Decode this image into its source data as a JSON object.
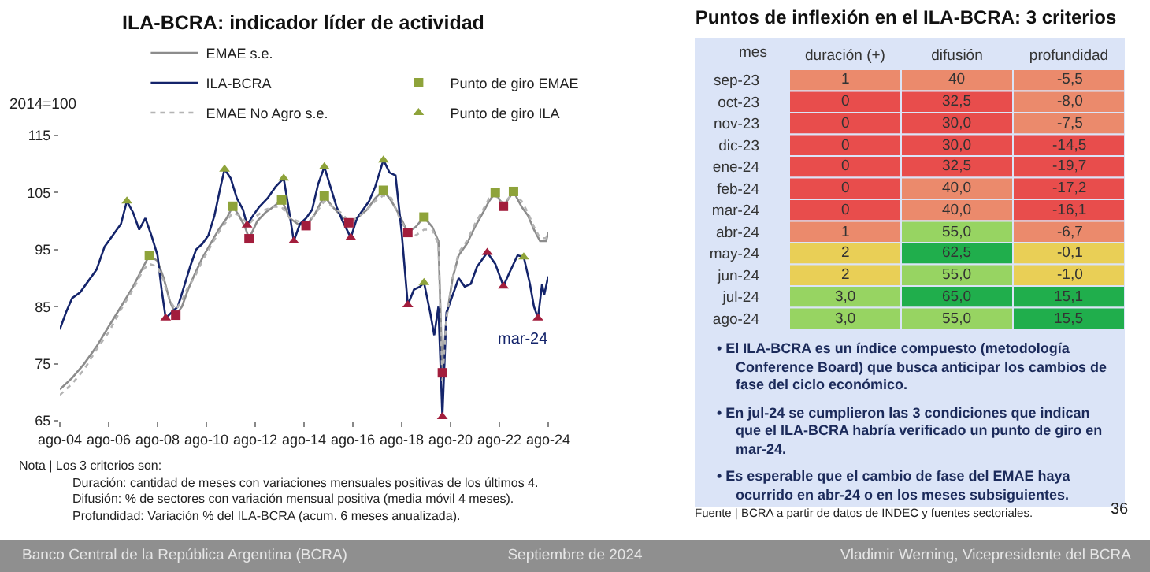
{
  "chart_data": [
    {
      "type": "line",
      "title": "ILA-BCRA: indicador líder de actividad",
      "ylabel": "2014=100",
      "xlim": [
        "2004-08",
        "2024-08"
      ],
      "xticks": [
        {
          "value": "2004-08",
          "label": "ago-04"
        },
        {
          "value": "2006-08",
          "label": "ago-06"
        },
        {
          "value": "2008-08",
          "label": "ago-08"
        },
        {
          "value": "2010-08",
          "label": "ago-10"
        },
        {
          "value": "2012-08",
          "label": "ago-12"
        },
        {
          "value": "2014-08",
          "label": "ago-14"
        },
        {
          "value": "2016-08",
          "label": "ago-16"
        },
        {
          "value": "2018-08",
          "label": "ago-18"
        },
        {
          "value": "2020-08",
          "label": "ago-20"
        },
        {
          "value": "2022-08",
          "label": "ago-22"
        },
        {
          "value": "2024-08",
          "label": "ago-24"
        }
      ],
      "ylim": [
        65,
        115
      ],
      "yticks": [
        65,
        75,
        85,
        95,
        105,
        115
      ],
      "grid": false,
      "legend": "top",
      "series": [
        {
          "name": "EMAE s.e.",
          "type": "line",
          "color": "#8c8c8c",
          "line_style": "solid",
          "marker": "none",
          "x": [
            "2004-08",
            "2005-02",
            "2005-08",
            "2006-02",
            "2006-08",
            "2007-02",
            "2007-08",
            "2008-01",
            "2008-04",
            "2008-08",
            "2008-11",
            "2009-02",
            "2009-05",
            "2009-08",
            "2009-11",
            "2010-02",
            "2010-06",
            "2010-10",
            "2011-02",
            "2011-06",
            "2011-09",
            "2011-12",
            "2012-03",
            "2012-05",
            "2012-09",
            "2013-01",
            "2013-05",
            "2013-09",
            "2014-01",
            "2014-05",
            "2014-09",
            "2015-01",
            "2015-06",
            "2015-10",
            "2016-02",
            "2016-06",
            "2016-10",
            "2017-03",
            "2017-07",
            "2017-11",
            "2018-03",
            "2018-07",
            "2018-11",
            "2019-03",
            "2019-07",
            "2019-11",
            "2020-02",
            "2020-04",
            "2020-06",
            "2020-09",
            "2020-12",
            "2021-04",
            "2021-08",
            "2021-12",
            "2022-03",
            "2022-06",
            "2022-10",
            "2023-03",
            "2023-07",
            "2023-10",
            "2024-01",
            "2024-04",
            "2024-07",
            "2024-08"
          ],
          "values": [
            70.5,
            72.5,
            75,
            78,
            81.5,
            85,
            88.5,
            92,
            94,
            93,
            90,
            86,
            83.5,
            85,
            88,
            90.5,
            93.5,
            96,
            98.5,
            100.5,
            102.6,
            101,
            99,
            96.9,
            100,
            101.5,
            102.5,
            103.7,
            100.5,
            99.5,
            99.2,
            101,
            104.4,
            102.5,
            101,
            99.7,
            100.5,
            102,
            104,
            105.4,
            103.5,
            101,
            98,
            99,
            100.7,
            99,
            96.5,
            73.4,
            83,
            90,
            94,
            96,
            99,
            101.5,
            103.5,
            105,
            102.6,
            105.2,
            102.5,
            101,
            98.5,
            96.5,
            96.5,
            98
          ]
        },
        {
          "name": "Punto de giro EMAE",
          "type": "scatter",
          "marker": "square",
          "colors": [
            "#8ea33a",
            "#a21d3c",
            "#8ea33a",
            "#a21d3c",
            "#8ea33a",
            "#a21d3c",
            "#8ea33a",
            "#a21d3c",
            "#8ea33a",
            "#a21d3c",
            "#8ea33a",
            "#a21d3c",
            "#8ea33a",
            "#a21d3c",
            "#8ea33a"
          ],
          "x": [
            "2008-04",
            "2009-05",
            "2011-09",
            "2012-05",
            "2013-09",
            "2014-09",
            "2015-06",
            "2016-06",
            "2017-11",
            "2018-11",
            "2019-07",
            "2020-04",
            "2022-06",
            "2022-10",
            "2023-03"
          ],
          "values": [
            94,
            83.5,
            102.6,
            96.9,
            103.7,
            99.2,
            104.4,
            99.7,
            105.4,
            98,
            100.7,
            73.4,
            105,
            102.6,
            105.2
          ]
        },
        {
          "name": "ILA-BCRA",
          "type": "line",
          "color": "#14246b",
          "line_style": "solid",
          "marker": "none",
          "x": [
            "2004-08",
            "2004-11",
            "2005-02",
            "2005-06",
            "2005-10",
            "2006-02",
            "2006-06",
            "2006-10",
            "2007-02",
            "2007-05",
            "2007-08",
            "2007-11",
            "2008-02",
            "2008-05",
            "2008-08",
            "2008-10",
            "2008-12",
            "2009-03",
            "2009-06",
            "2009-09",
            "2009-12",
            "2010-03",
            "2010-06",
            "2010-09",
            "2010-12",
            "2011-03",
            "2011-05",
            "2011-08",
            "2011-11",
            "2012-02",
            "2012-04",
            "2012-07",
            "2012-10",
            "2013-02",
            "2013-06",
            "2013-10",
            "2014-01",
            "2014-03",
            "2014-06",
            "2014-09",
            "2014-12",
            "2015-03",
            "2015-06",
            "2015-09",
            "2015-12",
            "2016-03",
            "2016-07",
            "2016-10",
            "2017-01",
            "2017-04",
            "2017-07",
            "2017-11",
            "2018-02",
            "2018-05",
            "2018-08",
            "2018-11",
            "2019-02",
            "2019-05",
            "2019-07",
            "2019-10",
            "2019-12",
            "2020-02",
            "2020-04",
            "2020-06",
            "2020-09",
            "2020-12",
            "2021-03",
            "2021-06",
            "2021-09",
            "2021-12",
            "2022-02",
            "2022-06",
            "2022-10",
            "2023-01",
            "2023-05",
            "2023-08",
            "2023-11",
            "2024-01",
            "2024-03",
            "2024-05",
            "2024-06",
            "2024-08"
          ],
          "values": [
            81,
            84,
            86.5,
            87.5,
            89.5,
            91.5,
            95.5,
            97.5,
            99.5,
            103.5,
            101.5,
            98.5,
            100.5,
            97.5,
            94,
            88,
            83,
            84,
            85,
            88.5,
            92,
            95,
            96,
            97.5,
            101,
            106,
            109.1,
            107.5,
            104,
            102,
            99.3,
            101,
            102.5,
            104,
            106,
            107.5,
            101,
            96.5,
            99.5,
            100.5,
            102,
            106.5,
            109.5,
            106,
            102.5,
            100,
            97.1,
            100.5,
            102,
            103.5,
            106,
            110.7,
            108.5,
            108,
            98,
            85.3,
            88,
            88.5,
            89.2,
            84,
            80,
            85,
            65.7,
            84,
            87,
            90,
            88.5,
            89,
            92,
            93.5,
            94.5,
            92.5,
            88.6,
            91,
            94,
            93.7,
            89,
            85,
            83,
            89,
            87,
            90.3
          ]
        },
        {
          "name": "Punto de giro ILA",
          "type": "scatter",
          "marker": "triangle",
          "colors": [
            "#8ea33a",
            "#a21d3c",
            "#8ea33a",
            "#a21d3c",
            "#8ea33a",
            "#a21d3c",
            "#8ea33a",
            "#a21d3c",
            "#8ea33a",
            "#a21d3c",
            "#8ea33a",
            "#a21d3c",
            "#a21d3c",
            "#a21d3c",
            "#8ea33a",
            "#a21d3c"
          ],
          "x": [
            "2007-05",
            "2008-12",
            "2011-05",
            "2012-04",
            "2013-10",
            "2014-03",
            "2015-06",
            "2016-07",
            "2017-11",
            "2018-11",
            "2019-07",
            "2020-04",
            "2022-02",
            "2022-10",
            "2023-08",
            "2024-03"
          ],
          "values": [
            103.5,
            83,
            109.1,
            99.3,
            107.5,
            96.5,
            109.5,
            97.1,
            110.7,
            85.3,
            89.2,
            65.7,
            94.5,
            88.6,
            93.7,
            83
          ]
        },
        {
          "name": "EMAE No Agro s.e.",
          "type": "line",
          "color": "#b4b4b4",
          "line_style": "dotted",
          "marker": "none",
          "x": [
            "2004-08",
            "2005-02",
            "2005-08",
            "2006-02",
            "2006-08",
            "2007-02",
            "2007-08",
            "2008-01",
            "2008-04",
            "2008-08",
            "2008-11",
            "2009-02",
            "2009-05",
            "2009-08",
            "2009-11",
            "2010-02",
            "2010-06",
            "2010-10",
            "2011-02",
            "2011-06",
            "2011-09",
            "2011-12",
            "2012-03",
            "2012-05",
            "2012-09",
            "2013-01",
            "2013-05",
            "2013-09",
            "2014-01",
            "2014-05",
            "2014-09",
            "2015-01",
            "2015-06",
            "2015-10",
            "2016-02",
            "2016-06",
            "2016-10",
            "2017-03",
            "2017-07",
            "2017-11",
            "2018-03",
            "2018-07",
            "2018-11",
            "2019-03",
            "2019-07",
            "2019-11",
            "2020-02",
            "2020-04",
            "2020-06",
            "2020-09",
            "2020-12",
            "2021-04",
            "2021-08",
            "2021-12",
            "2022-03",
            "2022-06",
            "2022-10",
            "2023-03",
            "2023-07",
            "2023-10",
            "2024-01",
            "2024-04",
            "2024-07",
            "2024-08"
          ],
          "values": [
            69.5,
            71.5,
            74,
            77.5,
            80.5,
            84.5,
            88,
            91.5,
            92.5,
            92,
            89.5,
            86,
            84.5,
            86,
            88.5,
            90,
            93,
            95.5,
            98,
            100,
            101.5,
            101,
            100,
            99.5,
            101,
            102,
            102.5,
            102.5,
            100.5,
            100,
            99.5,
            101,
            103.5,
            102.5,
            101.5,
            100,
            100.5,
            102,
            103.5,
            104.5,
            104,
            100.5,
            98,
            97.5,
            98.5,
            98.5,
            96,
            72,
            83,
            90,
            94.5,
            96.5,
            99.5,
            102,
            104,
            104.5,
            103,
            105,
            103.5,
            101.5,
            99,
            97,
            97,
            98
          ]
        }
      ],
      "annotations": [
        {
          "text": "mar-24",
          "x": "2024-03",
          "y": 83
        },
        "Nota | Los 3 criterios son:",
        "Duración: cantidad de meses con variaciones mensuales positivas de los últimos 4.",
        "Difusión: %  de sectores con variación mensual positiva (media móvil 4 meses).",
        "Profundidad:  Variación % del ILA-BCRA (acum. 6 meses anualizada).",
        "Banco Central de la República Argentina (BCRA)",
        "Septiembre de 2024",
        "Vladimir Werning, Vicepresidente del BCRA"
      ]
    },
    {
      "type": "heatmap",
      "title": "Puntos de inflexión en el ILA-BCRA: 3 criterios",
      "ylabel": "mes",
      "categories": [
        "duración (+)",
        "difusión",
        "profundidad"
      ],
      "y_categories": [
        "sep-23",
        "oct-23",
        "nov-23",
        "dic-23",
        "ene-24",
        "feb-24",
        "mar-24",
        "abr-24",
        "may-24",
        "jun-24",
        "jul-24",
        "ago-24"
      ],
      "cells": [
        [
          1,
          40,
          -5.5
        ],
        [
          0,
          32.5,
          -8.0
        ],
        [
          0,
          30.0,
          -7.5
        ],
        [
          0,
          30.0,
          -14.5
        ],
        [
          0,
          32.5,
          -19.7
        ],
        [
          0,
          40.0,
          -17.2
        ],
        [
          0,
          40.0,
          -16.1
        ],
        [
          1,
          55.0,
          -6.7
        ],
        [
          2,
          62.5,
          -0.1
        ],
        [
          2,
          55.0,
          -1.0
        ],
        [
          3.0,
          65.0,
          15.1
        ],
        [
          3.0,
          55.0,
          15.5
        ]
      ],
      "cell_labels": [
        [
          "1",
          "40",
          "-5,5"
        ],
        [
          "0",
          "32,5",
          "-8,0"
        ],
        [
          "0",
          "30,0",
          "-7,5"
        ],
        [
          "0",
          "30,0",
          "-14,5"
        ],
        [
          "0",
          "32,5",
          "-19,7"
        ],
        [
          "0",
          "40,0",
          "-17,2"
        ],
        [
          "0",
          "40,0",
          "-16,1"
        ],
        [
          "1",
          "55,0",
          "-6,7"
        ],
        [
          "2",
          "62,5",
          "-0,1"
        ],
        [
          "2",
          "55,0",
          "-1,0"
        ],
        [
          "3,0",
          "65,0",
          "15,1"
        ],
        [
          "3,0",
          "55,0",
          "15,5"
        ]
      ],
      "colors": [
        [
          "#eb8a6c",
          "#eb8a6c",
          "#eb8a6c"
        ],
        [
          "#e84d4c",
          "#e84d4c",
          "#eb8a6c"
        ],
        [
          "#e84d4c",
          "#e84d4c",
          "#eb8a6c"
        ],
        [
          "#e84d4c",
          "#e84d4c",
          "#e84d4c"
        ],
        [
          "#e84d4c",
          "#e84d4c",
          "#e84d4c"
        ],
        [
          "#e84d4c",
          "#eb8a6c",
          "#e84d4c"
        ],
        [
          "#e84d4c",
          "#eb8a6c",
          "#e84d4c"
        ],
        [
          "#eb8a6c",
          "#97d462",
          "#eb8a6c"
        ],
        [
          "#e9cf56",
          "#20ae4c",
          "#e9cf56"
        ],
        [
          "#e9cf56",
          "#97d462",
          "#e9cf56"
        ],
        [
          "#97d462",
          "#20ae4c",
          "#20ae4c"
        ],
        [
          "#97d462",
          "#97d462",
          "#20ae4c"
        ]
      ],
      "annotations": [
        "• El ILA-BCRA es un índice compuesto (metodología Conference Board) que busca anticipar los cambios de fase del ciclo económico.",
        "• En jul-24 se cumplieron las 3 condiciones que indican que el ILA-BCRA habría verificado un punto de giro en mar-24.",
        "• Es esperable que el cambio de fase del EMAE haya ocurrido en abr-24 o en los meses subsiguientes.",
        "Fuente | BCRA a partir de datos de INDEC y fuentes sectoriales.",
        "36"
      ]
    }
  ]
}
